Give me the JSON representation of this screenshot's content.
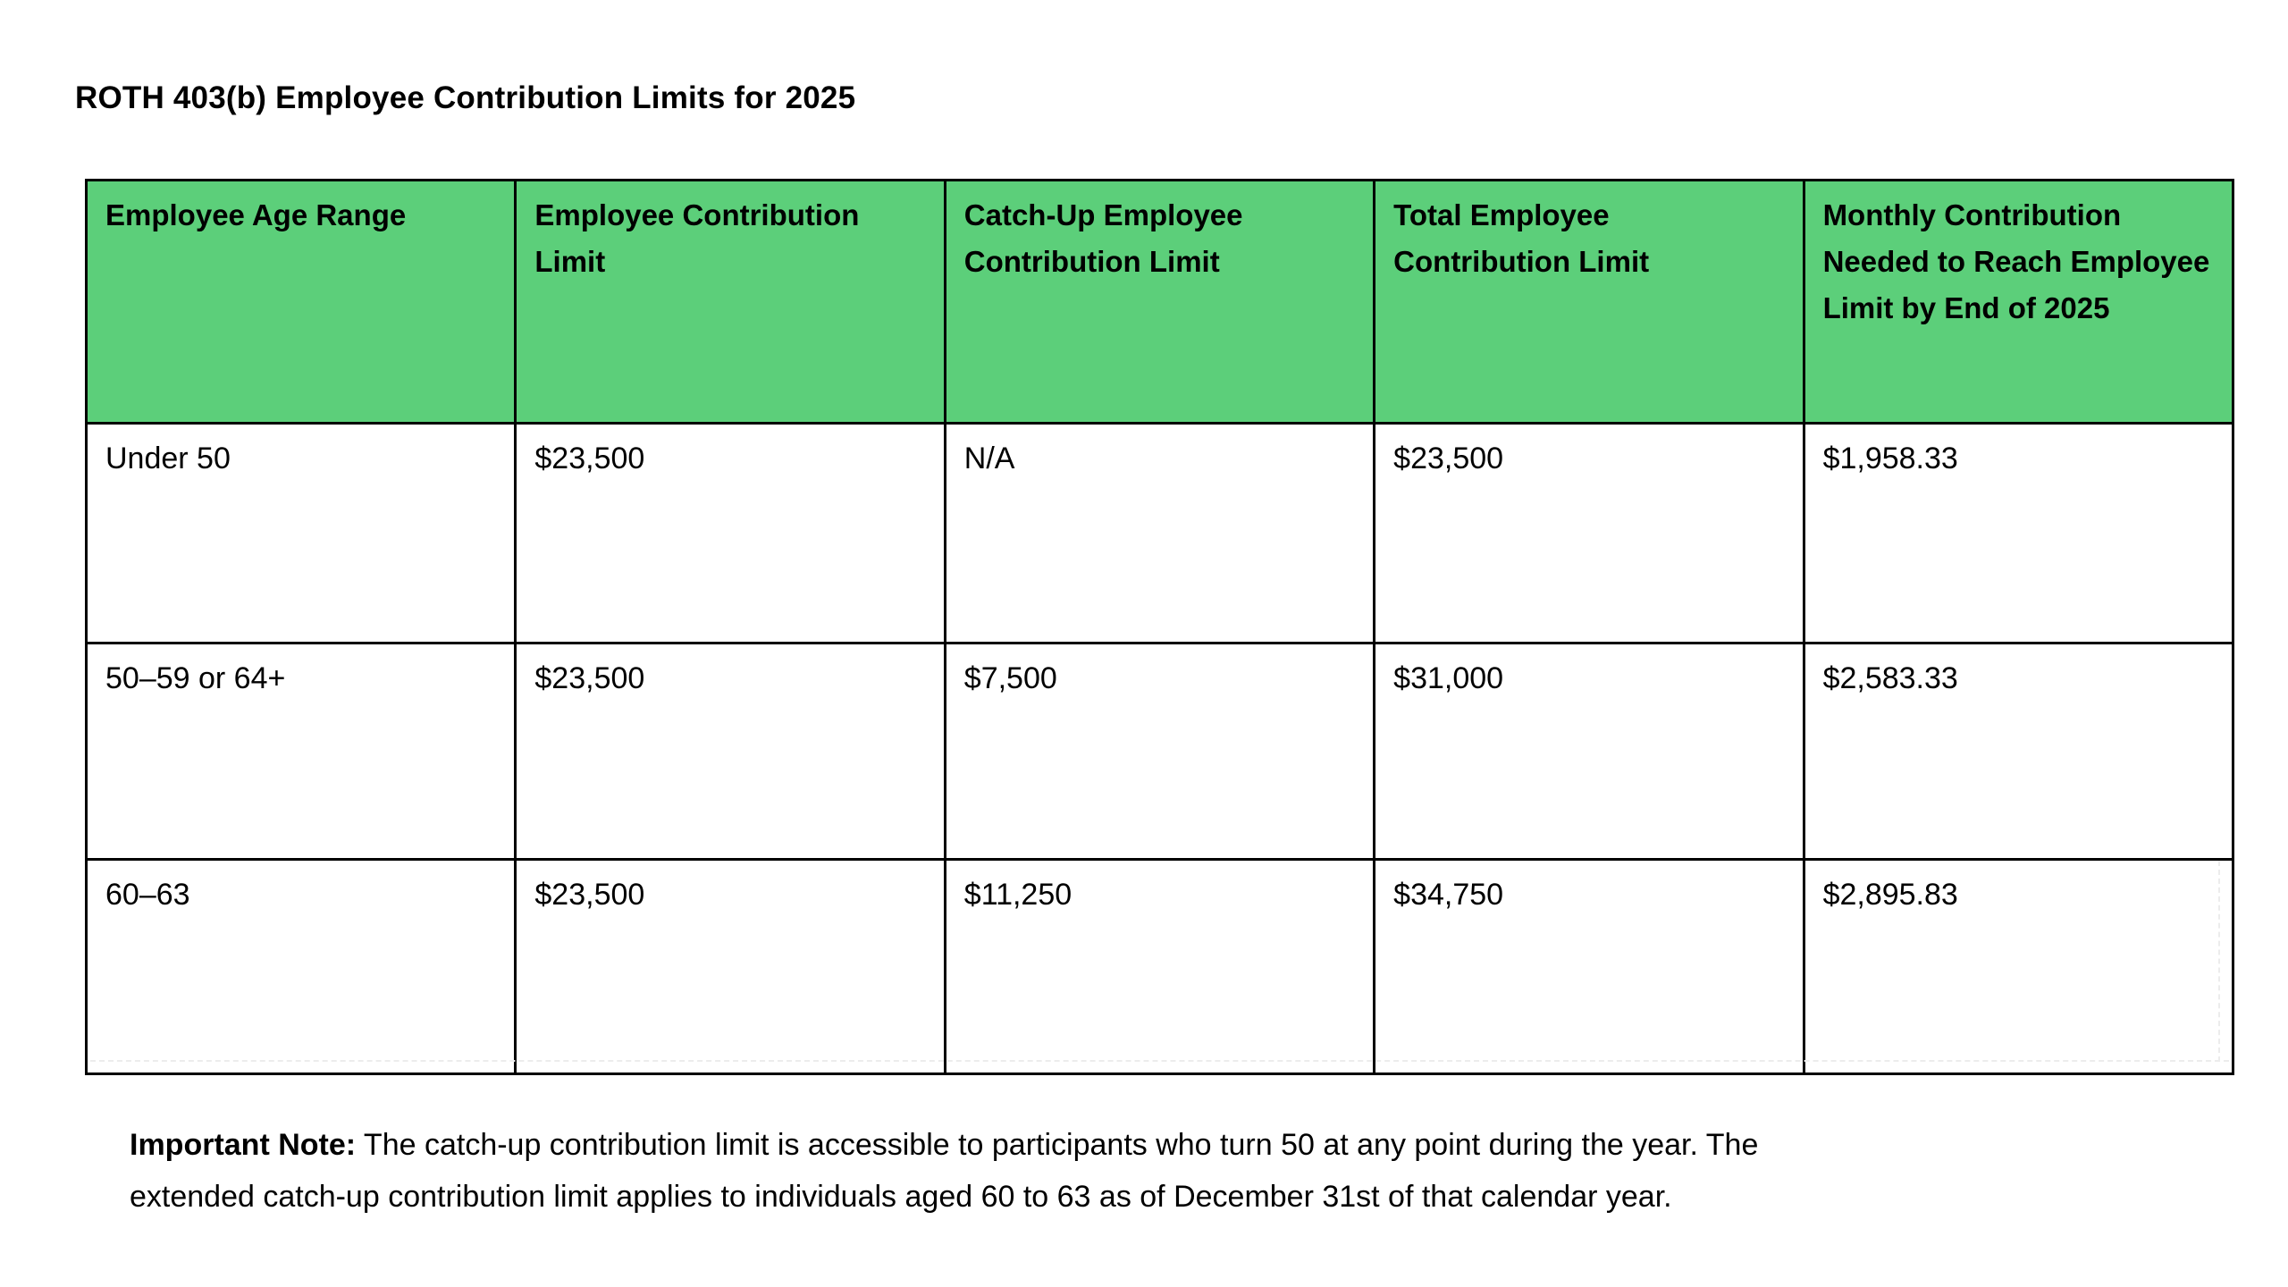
{
  "title": "ROTH 403(b) Employee Contribution Limits for 2025",
  "table": {
    "header_bg": "#5ccf7a",
    "border_color": "#000000",
    "columns": [
      "Employee Age Range",
      "Employee Contribution Limit",
      "Catch-Up Employee Contribution Limit",
      "Total Employee Contribution Limit",
      "Monthly Contribution Needed to Reach Employee Limit by End of 2025"
    ],
    "rows": [
      [
        "Under 50",
        "$23,500",
        "N/A",
        "$23,500",
        "$1,958.33"
      ],
      [
        "50–59 or 64+",
        "$23,500",
        "$7,500",
        "$31,000",
        "$2,583.33"
      ],
      [
        "60–63",
        "$23,500",
        "$11,250",
        "$34,750",
        "$2,895.83"
      ]
    ]
  },
  "note": {
    "label": "Important Note:",
    "line1": " The catch-up contribution limit is accessible to participants who turn 50 at any point during the year. The",
    "line2": "extended catch-up contribution limit applies to individuals aged 60 to 63 as of December 31st of that calendar year."
  }
}
